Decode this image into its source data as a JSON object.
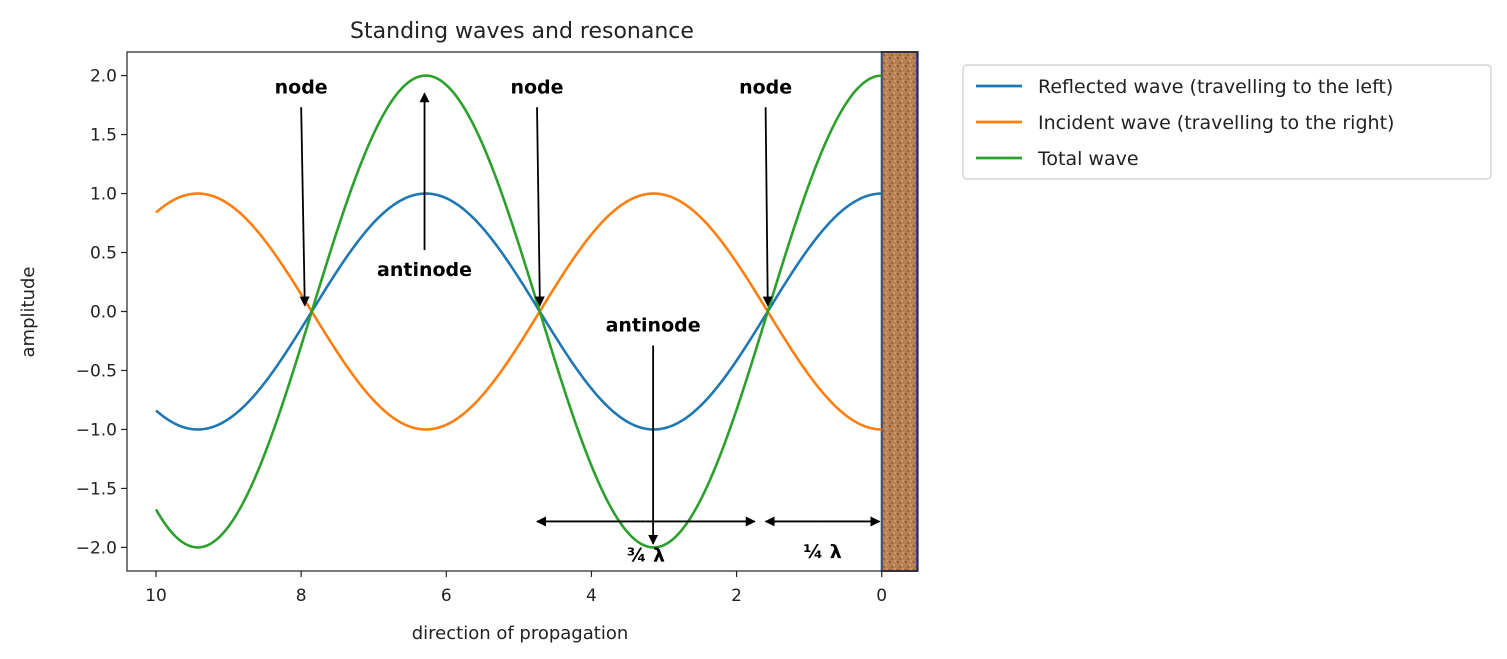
{
  "chart_data": {
    "type": "line",
    "title": "Standing waves and resonance",
    "xlabel": "direction of propagation",
    "ylabel": "amplitude",
    "xlim": [
      10.4,
      -0.5
    ],
    "ylim": [
      -2.2,
      2.2
    ],
    "x_inverted": true,
    "xticks": [
      10,
      8,
      6,
      4,
      2,
      0
    ],
    "yticks": [
      2.0,
      1.5,
      1.0,
      0.5,
      0.0,
      -0.5,
      -1.0,
      -1.5,
      -2.0
    ],
    "xtick_labels": [
      "10",
      "8",
      "6",
      "4",
      "2",
      "0"
    ],
    "ytick_labels": [
      "2.0",
      "1.5",
      "1.0",
      "0.5",
      "0.0",
      "−0.5",
      "−1.0",
      "−1.5",
      "−2.0"
    ],
    "grid": false,
    "legend_position": "outside-right-top",
    "x_range": [
      0,
      10
    ],
    "series": [
      {
        "name": "Reflected wave (travelling to the left)",
        "color": "#1f77b4",
        "function": "cos(x)",
        "amplitude": 1
      },
      {
        "name": "Incident wave (travelling to the right)",
        "color": "#ff7f0e",
        "function": "-cos(x)",
        "amplitude": 1
      },
      {
        "name": "Total wave",
        "color": "#2ca02c",
        "function": "2cos(x)",
        "amplitude": 2
      }
    ],
    "wall": {
      "x_from": 0,
      "x_to": -0.5,
      "color": "#b07a4a",
      "label": ""
    },
    "annotations": [
      {
        "label": "node",
        "text_at": [
          8.0,
          1.85
        ],
        "arrow_to": [
          7.95,
          0.05
        ]
      },
      {
        "label": "node",
        "text_at": [
          4.75,
          1.85
        ],
        "arrow_to": [
          4.71,
          0.05
        ]
      },
      {
        "label": "node",
        "text_at": [
          1.6,
          1.85
        ],
        "arrow_to": [
          1.57,
          0.05
        ]
      },
      {
        "label": "antinode",
        "text_at": [
          6.3,
          0.3
        ],
        "arrow_to": [
          6.3,
          1.85
        ]
      },
      {
        "label": "antinode",
        "text_at": [
          3.15,
          -0.17
        ],
        "arrow_to": [
          3.15,
          -1.97
        ]
      }
    ],
    "spans": [
      {
        "label": "¾ λ",
        "x_from": 4.75,
        "x_to": 1.75,
        "y": -1.78,
        "label_y": -2.05
      },
      {
        "label": "¼ λ",
        "x_from": 1.6,
        "x_to": 0.03,
        "y": -1.78,
        "label_y": -2.02
      }
    ]
  }
}
